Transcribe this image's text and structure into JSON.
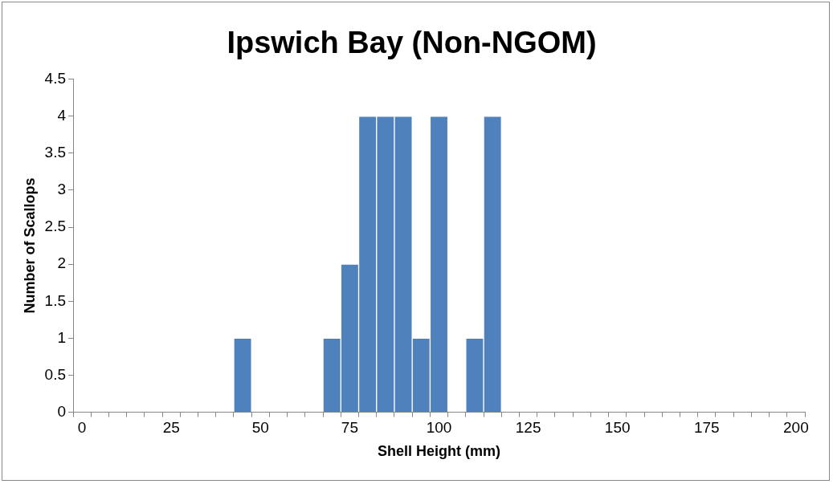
{
  "chart_data": {
    "type": "bar",
    "title": "Ipswich Bay (Non-NGOM)",
    "xlabel": "Shell Height (mm)",
    "ylabel": "Number of Scallops",
    "categories": [
      "0",
      null,
      null,
      null,
      null,
      "25",
      null,
      null,
      null,
      null,
      "50",
      null,
      null,
      null,
      null,
      "75",
      null,
      null,
      null,
      null,
      "100",
      null,
      null,
      null,
      null,
      "125",
      null,
      null,
      null,
      null,
      "150",
      null,
      null,
      null,
      null,
      "175",
      null,
      null,
      null,
      null,
      "200"
    ],
    "values": [
      0,
      0,
      0,
      0,
      0,
      0,
      0,
      0,
      0,
      1,
      0,
      0,
      0,
      0,
      1,
      2,
      4,
      4,
      4,
      1,
      4,
      0,
      1,
      4,
      0,
      0,
      0,
      0,
      0,
      0,
      0,
      0,
      0,
      0,
      0,
      0,
      0,
      0,
      0,
      0,
      0
    ],
    "color": "#4f81bd",
    "ylim": [
      0,
      4.5
    ],
    "yticks": [
      0,
      0.5,
      1,
      1.5,
      2,
      2.5,
      3,
      3.5,
      4,
      4.5
    ]
  }
}
